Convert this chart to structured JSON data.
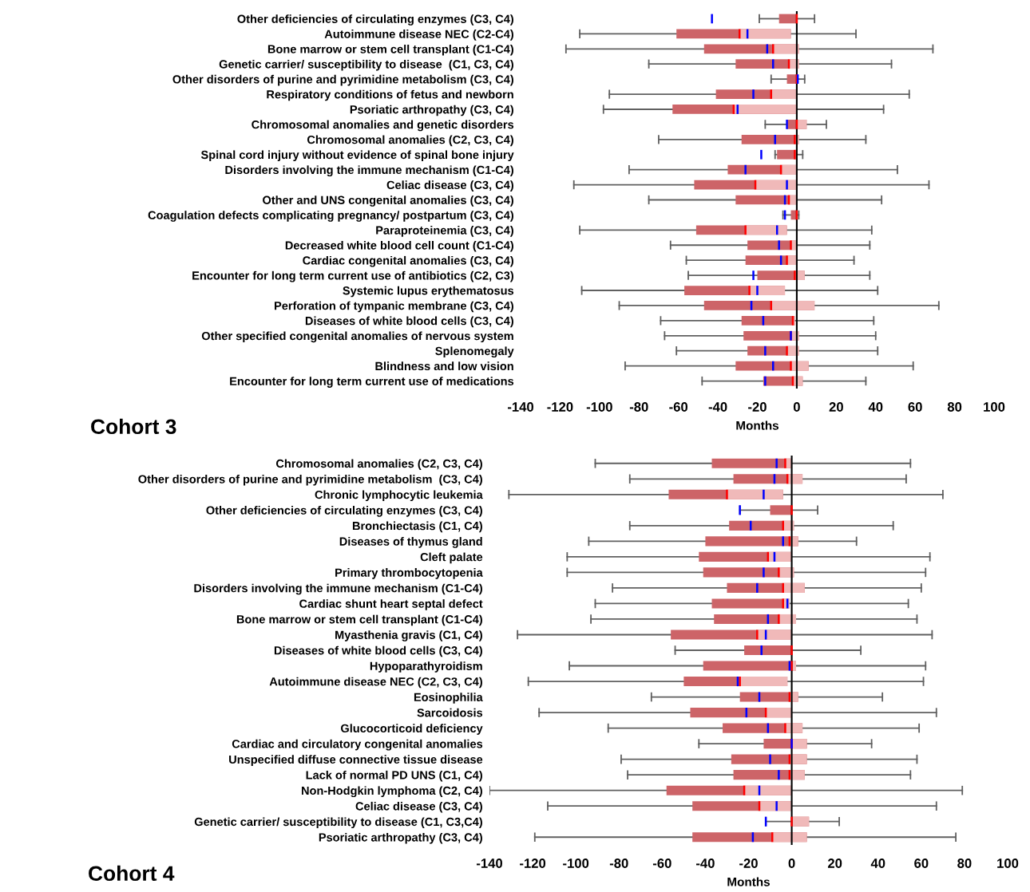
{
  "chart_data": [
    {
      "type": "box",
      "title": "Cohort 3",
      "xlabel": "Months",
      "orientation": "horizontal",
      "categories": [
        "Other deficiencies of circulating enzymes (C3, C4)",
        "Autoimmune disease NEC (C2-C4)",
        "Bone marrow or stem cell transplant (C1-C4)",
        "Genetic carrier/ susceptibility to disease  (C1, C3, C4)",
        "Other disorders of purine and pyrimidine metabolism (C3, C4)",
        "Respiratory conditions of fetus and newborn",
        "Psoriatic arthropathy (C3, C4)",
        "Chromosomal anomalies and genetic disorders",
        "Chromosomal anomalies (C2, C3, C4)",
        "Spinal cord injury without evidence of spinal bone injury",
        "Disorders involving the immune mechanism (C1-C4)",
        "Celiac disease (C3, C4)",
        "Other and UNS congenital anomalies (C3, C4)",
        "Coagulation defects complicating pregnancy/ postpartum (C3, C4)",
        "Paraproteinemia (C3, C4)",
        "Decreased white blood cell count (C1-C4)",
        "Cardiac congenital anomalies (C3, C4)",
        "Encounter for long term current use of antibiotics (C2, C3)",
        "Systemic lupus erythematosus",
        "Perforation of tympanic membrane (C3, C4)",
        "Diseases of white blood cells (C3, C4)",
        "Other specified congenital anomalies of nervous system",
        "Splenomegaly",
        "Blindness and low vision",
        "Encounter for long term current use of medications"
      ],
      "xlim": [
        -140,
        100
      ],
      "xticks": [
        -140,
        -120,
        -100,
        -80,
        -60,
        -40,
        -20,
        0,
        20,
        40,
        60,
        80,
        100
      ],
      "colors": [
        "#cd6468",
        "#cd6468",
        "#cd6468",
        "#cd6468",
        "#cd6468",
        "#cd6468",
        "#cd6468",
        "#cd6468",
        "#cd6468",
        "#cd6468",
        "#cd6468",
        "#cd6468",
        "#cd6468",
        "#cd6468",
        "#cd6468",
        "#cd6468",
        "#cd6468",
        "#cd6468",
        "#cd6468",
        "#cd6468",
        "#cd6468",
        "#cd6468",
        "#cd6468",
        "#cd6468",
        "#cd6468"
      ],
      "ref_lines": [
        {
          "axis": "x",
          "value": 0,
          "color": "#000000"
        }
      ],
      "boxes": [
        {
          "low": -19,
          "q1": -9,
          "median": 0,
          "q3": 0,
          "high": 9,
          "mean": -43
        },
        {
          "low": -110,
          "q1": -61,
          "median": -29,
          "q3": -3,
          "high": 30,
          "mean": -25
        },
        {
          "low": -117,
          "q1": -47,
          "median": -12,
          "q3": 1,
          "high": 69,
          "mean": -15
        },
        {
          "low": -75,
          "q1": -31,
          "median": -4,
          "q3": 1,
          "high": 48,
          "mean": -12
        },
        {
          "low": -13,
          "q1": -5,
          "median": 0,
          "q3": 0,
          "high": 4,
          "mean": 0.5
        },
        {
          "low": -95,
          "q1": -41,
          "median": -13,
          "q3": 0,
          "high": 57,
          "mean": -22
        },
        {
          "low": -98,
          "q1": -63,
          "median": -32,
          "q3": 0,
          "high": 44,
          "mean": -30
        },
        {
          "low": -16,
          "q1": -5,
          "median": 0,
          "q3": 5,
          "high": 15,
          "mean": -5
        },
        {
          "low": -70,
          "q1": -28,
          "median": -1,
          "q3": 1,
          "high": 35,
          "mean": -11
        },
        {
          "low": -11,
          "q1": -10,
          "median": -1,
          "q3": 0,
          "high": 3,
          "mean": -18
        },
        {
          "low": -85,
          "q1": -35,
          "median": -8,
          "q3": 0,
          "high": 51,
          "mean": -26
        },
        {
          "low": -113,
          "q1": -52,
          "median": -21,
          "q3": 0,
          "high": 67,
          "mean": -5
        },
        {
          "low": -75,
          "q1": -31,
          "median": -4,
          "q3": 0,
          "high": 43,
          "mean": -6
        },
        {
          "low": -7,
          "q1": -3,
          "median": 0,
          "q3": 0,
          "high": 1,
          "mean": -6
        },
        {
          "low": -110,
          "q1": -51,
          "median": -26,
          "q3": -5,
          "high": 38,
          "mean": -10
        },
        {
          "low": -64,
          "q1": -25,
          "median": -3,
          "q3": 0,
          "high": 37,
          "mean": -9
        },
        {
          "low": -56,
          "q1": -26,
          "median": -5,
          "q3": 0,
          "high": 29,
          "mean": -8
        },
        {
          "low": -55,
          "q1": -20,
          "median": -1,
          "q3": 4,
          "high": 37,
          "mean": -22
        },
        {
          "low": -109,
          "q1": -57,
          "median": -24,
          "q3": -6,
          "high": 41,
          "mean": -20
        },
        {
          "low": -90,
          "q1": -47,
          "median": -13,
          "q3": 9,
          "high": 72,
          "mean": -23
        },
        {
          "low": -69,
          "q1": -28,
          "median": -2,
          "q3": -1,
          "high": 39,
          "mean": -17
        },
        {
          "low": -67,
          "q1": -27,
          "median": -3,
          "q3": 1,
          "high": 40,
          "mean": -3
        },
        {
          "low": -61,
          "q1": -25,
          "median": -5,
          "q3": 1,
          "high": 41,
          "mean": -16
        },
        {
          "low": -87,
          "q1": -31,
          "median": -3,
          "q3": 6,
          "high": 59,
          "mean": -12
        },
        {
          "low": -48,
          "q1": -17,
          "median": -2,
          "q3": 3,
          "high": 35,
          "mean": -16
        }
      ]
    },
    {
      "type": "box",
      "title": "Cohort 4",
      "xlabel": "Months",
      "orientation": "horizontal",
      "categories": [
        "Chromosomal anomalies (C2, C3, C4)",
        "Other disorders of purine and pyrimidine metabolism  (C3, C4)",
        "Chronic lymphocytic leukemia",
        "Other deficiencies of circulating enzymes (C3, C4)",
        "Bronchiectasis (C1, C4)",
        "Diseases of thymus gland",
        "Cleft palate",
        "Primary thrombocytopenia",
        "Disorders involving the immune mechanism (C1-C4)",
        "Cardiac shunt heart septal defect",
        "Bone marrow or stem cell transplant (C1-C4)",
        "Myasthenia gravis (C1, C4)",
        "Diseases of white blood cells (C3, C4)",
        "Hypoparathyroidism",
        "Autoimmune disease NEC (C2, C3, C4)",
        "Eosinophilia",
        "Sarcoidosis",
        "Glucocorticoid deficiency",
        "Cardiac and circulatory congenital anomalies",
        "Unspecified diffuse connective tissue disease",
        "Lack of normal PD UNS (C1, C4)",
        "Non-Hodgkin lymphoma (C2, C4)",
        "Celiac disease (C3, C4)",
        "Genetic carrier/ susceptibility to disease (C1, C3,C4)",
        "Psoriatic arthropathy (C3, C4)"
      ],
      "xlim": [
        -140,
        100
      ],
      "xticks": [
        -140,
        -120,
        -100,
        -80,
        -60,
        -40,
        -20,
        0,
        20,
        40,
        60,
        80,
        100
      ],
      "colors": [
        "#cd6468",
        "#cd6468",
        "#cd6468",
        "#cd6468",
        "#cd6468",
        "#cd6468",
        "#cd6468",
        "#cd6468",
        "#cd6468",
        "#cd6468",
        "#cd6468",
        "#cd6468",
        "#cd6468",
        "#cd6468",
        "#cd6468",
        "#cd6468",
        "#cd6468",
        "#cd6468",
        "#cd6468",
        "#cd6468",
        "#cd6468",
        "#cd6468",
        "#cd6468",
        "#cd6468",
        "#cd6468"
      ],
      "ref_lines": [
        {
          "axis": "x",
          "value": 0,
          "color": "#000000"
        }
      ],
      "boxes": [
        {
          "low": -91,
          "q1": -37,
          "median": -3,
          "q3": 0,
          "high": 55,
          "mean": -7
        },
        {
          "low": -75,
          "q1": -27,
          "median": -2,
          "q3": 5,
          "high": 53,
          "mean": -8
        },
        {
          "low": -131,
          "q1": -57,
          "median": -30,
          "q3": -4,
          "high": 70,
          "mean": -13
        },
        {
          "low": -24,
          "q1": -10,
          "median": 0,
          "q3": 0,
          "high": 12,
          "mean": -24
        },
        {
          "low": -75,
          "q1": -29,
          "median": -4,
          "q3": 1,
          "high": 47,
          "mean": -19
        },
        {
          "low": -94,
          "q1": -40,
          "median": -1,
          "q3": 3,
          "high": 30,
          "mean": -4
        },
        {
          "low": -104,
          "q1": -43,
          "median": -11,
          "q3": 0,
          "high": 64,
          "mean": -8
        },
        {
          "low": -104,
          "q1": -41,
          "median": -6,
          "q3": 1,
          "high": 62,
          "mean": -13
        },
        {
          "low": -83,
          "q1": -30,
          "median": -4,
          "q3": 6,
          "high": 60,
          "mean": -16
        },
        {
          "low": -91,
          "q1": -37,
          "median": -4,
          "q3": -1,
          "high": 54,
          "mean": -2
        },
        {
          "low": -93,
          "q1": -36,
          "median": -6,
          "q3": 2,
          "high": 58,
          "mean": -11
        },
        {
          "low": -127,
          "q1": -56,
          "median": -16,
          "q3": 0,
          "high": 65,
          "mean": -12
        },
        {
          "low": -54,
          "q1": -22,
          "median": 0,
          "q3": 0,
          "high": 32,
          "mean": -14
        },
        {
          "low": -103,
          "q1": -41,
          "median": 0,
          "q3": 2,
          "high": 62,
          "mean": -1
        },
        {
          "low": -122,
          "q1": -50,
          "median": -24,
          "q3": -2,
          "high": 61,
          "mean": -25
        },
        {
          "low": -65,
          "q1": -24,
          "median": -1,
          "q3": 3,
          "high": 42,
          "mean": -15
        },
        {
          "low": -117,
          "q1": -47,
          "median": -12,
          "q3": 0,
          "high": 67,
          "mean": -21
        },
        {
          "low": -85,
          "q1": -32,
          "median": -3,
          "q3": 5,
          "high": 59,
          "mean": -11
        },
        {
          "low": -43,
          "q1": -13,
          "median": 0,
          "q3": 7,
          "high": 37,
          "mean": 0
        },
        {
          "low": -79,
          "q1": -28,
          "median": -1,
          "q3": 7,
          "high": 58,
          "mean": -10
        },
        {
          "low": -76,
          "q1": -27,
          "median": -1,
          "q3": 6,
          "high": 55,
          "mean": -6
        },
        {
          "low": -140,
          "q1": -58,
          "median": -22,
          "q3": 0,
          "high": 79,
          "mean": -15
        },
        {
          "low": -113,
          "q1": -46,
          "median": -15,
          "q3": 0,
          "high": 67,
          "mean": -7
        },
        {
          "low": -12,
          "q1": 0,
          "median": 0,
          "q3": 8,
          "high": 22,
          "mean": -12
        },
        {
          "low": -119,
          "q1": -46,
          "median": -9,
          "q3": 7,
          "high": 76,
          "mean": -18
        }
      ]
    }
  ]
}
